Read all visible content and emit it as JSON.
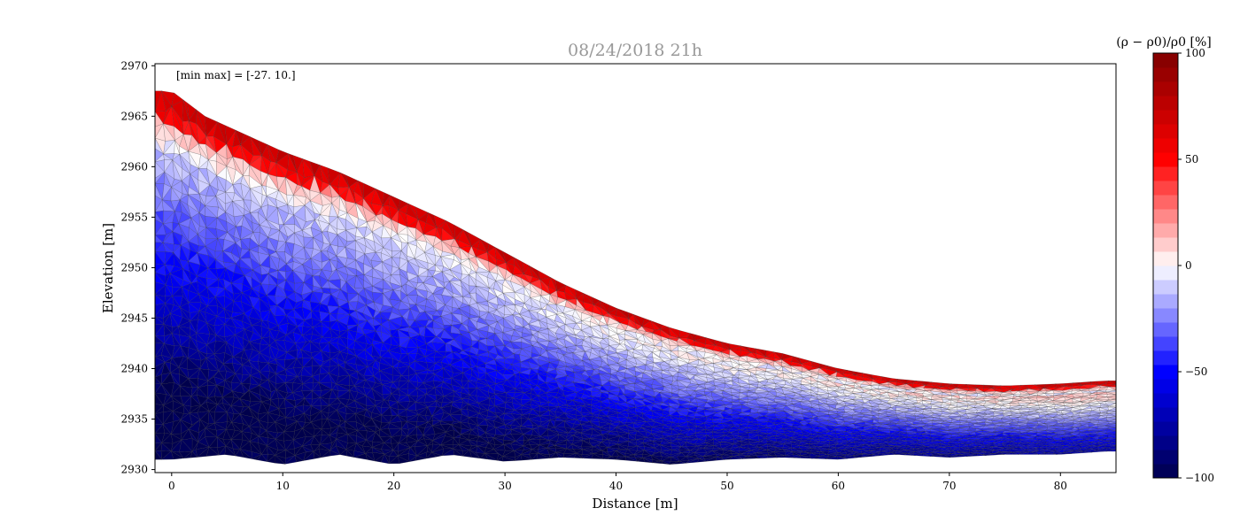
{
  "chart_data": {
    "type": "heatmap",
    "title": "08/24/2018 21h",
    "xlabel": "Distance [m]",
    "ylabel": "Elevation [m]",
    "annotation": "[min max] = [-27. 10.]",
    "colorbar_label": "(ρ − ρ0)/ρ0 [%]",
    "xlim": [
      -1.5,
      85
    ],
    "ylim": [
      2929.7,
      2970.2
    ],
    "x_ticks": [
      0,
      10,
      20,
      30,
      40,
      50,
      60,
      70,
      80
    ],
    "y_ticks": [
      2930,
      2935,
      2940,
      2945,
      2950,
      2955,
      2960,
      2965,
      2970
    ],
    "colorbar_range": [
      -100,
      100
    ],
    "colorbar_ticks": [
      -100,
      -50,
      0,
      50,
      100
    ],
    "colorbar_tick_labels": [
      "−100",
      "−50",
      "0",
      "50",
      "100"
    ],
    "colormap": "seismic",
    "colormap_stops": [
      "#00004c",
      "#0000ff",
      "#ffffff",
      "#ff0000",
      "#7f0000"
    ],
    "grid": false,
    "surface_profile": {
      "x": [
        0,
        3,
        6,
        10,
        15,
        20,
        25,
        30,
        35,
        40,
        45,
        50,
        55,
        60,
        65,
        70,
        75,
        80,
        84
      ],
      "elevation": [
        2967.5,
        2965.0,
        2963.5,
        2961.5,
        2959.5,
        2957.0,
        2954.5,
        2951.5,
        2948.5,
        2946.0,
        2944.0,
        2942.5,
        2941.5,
        2940.0,
        2939.0,
        2938.5,
        2938.3,
        2938.5,
        2938.8
      ]
    },
    "bottom_profile": {
      "x": [
        0,
        5,
        10,
        15,
        20,
        25,
        30,
        35,
        40,
        45,
        50,
        55,
        60,
        65,
        70,
        75,
        80,
        84
      ],
      "elevation": [
        2931.0,
        2931.5,
        2930.5,
        2931.5,
        2930.5,
        2931.5,
        2930.8,
        2931.2,
        2931.0,
        2930.5,
        2931.0,
        2931.2,
        2931.0,
        2931.5,
        2931.2,
        2931.5,
        2931.5,
        2931.8
      ]
    }
  }
}
